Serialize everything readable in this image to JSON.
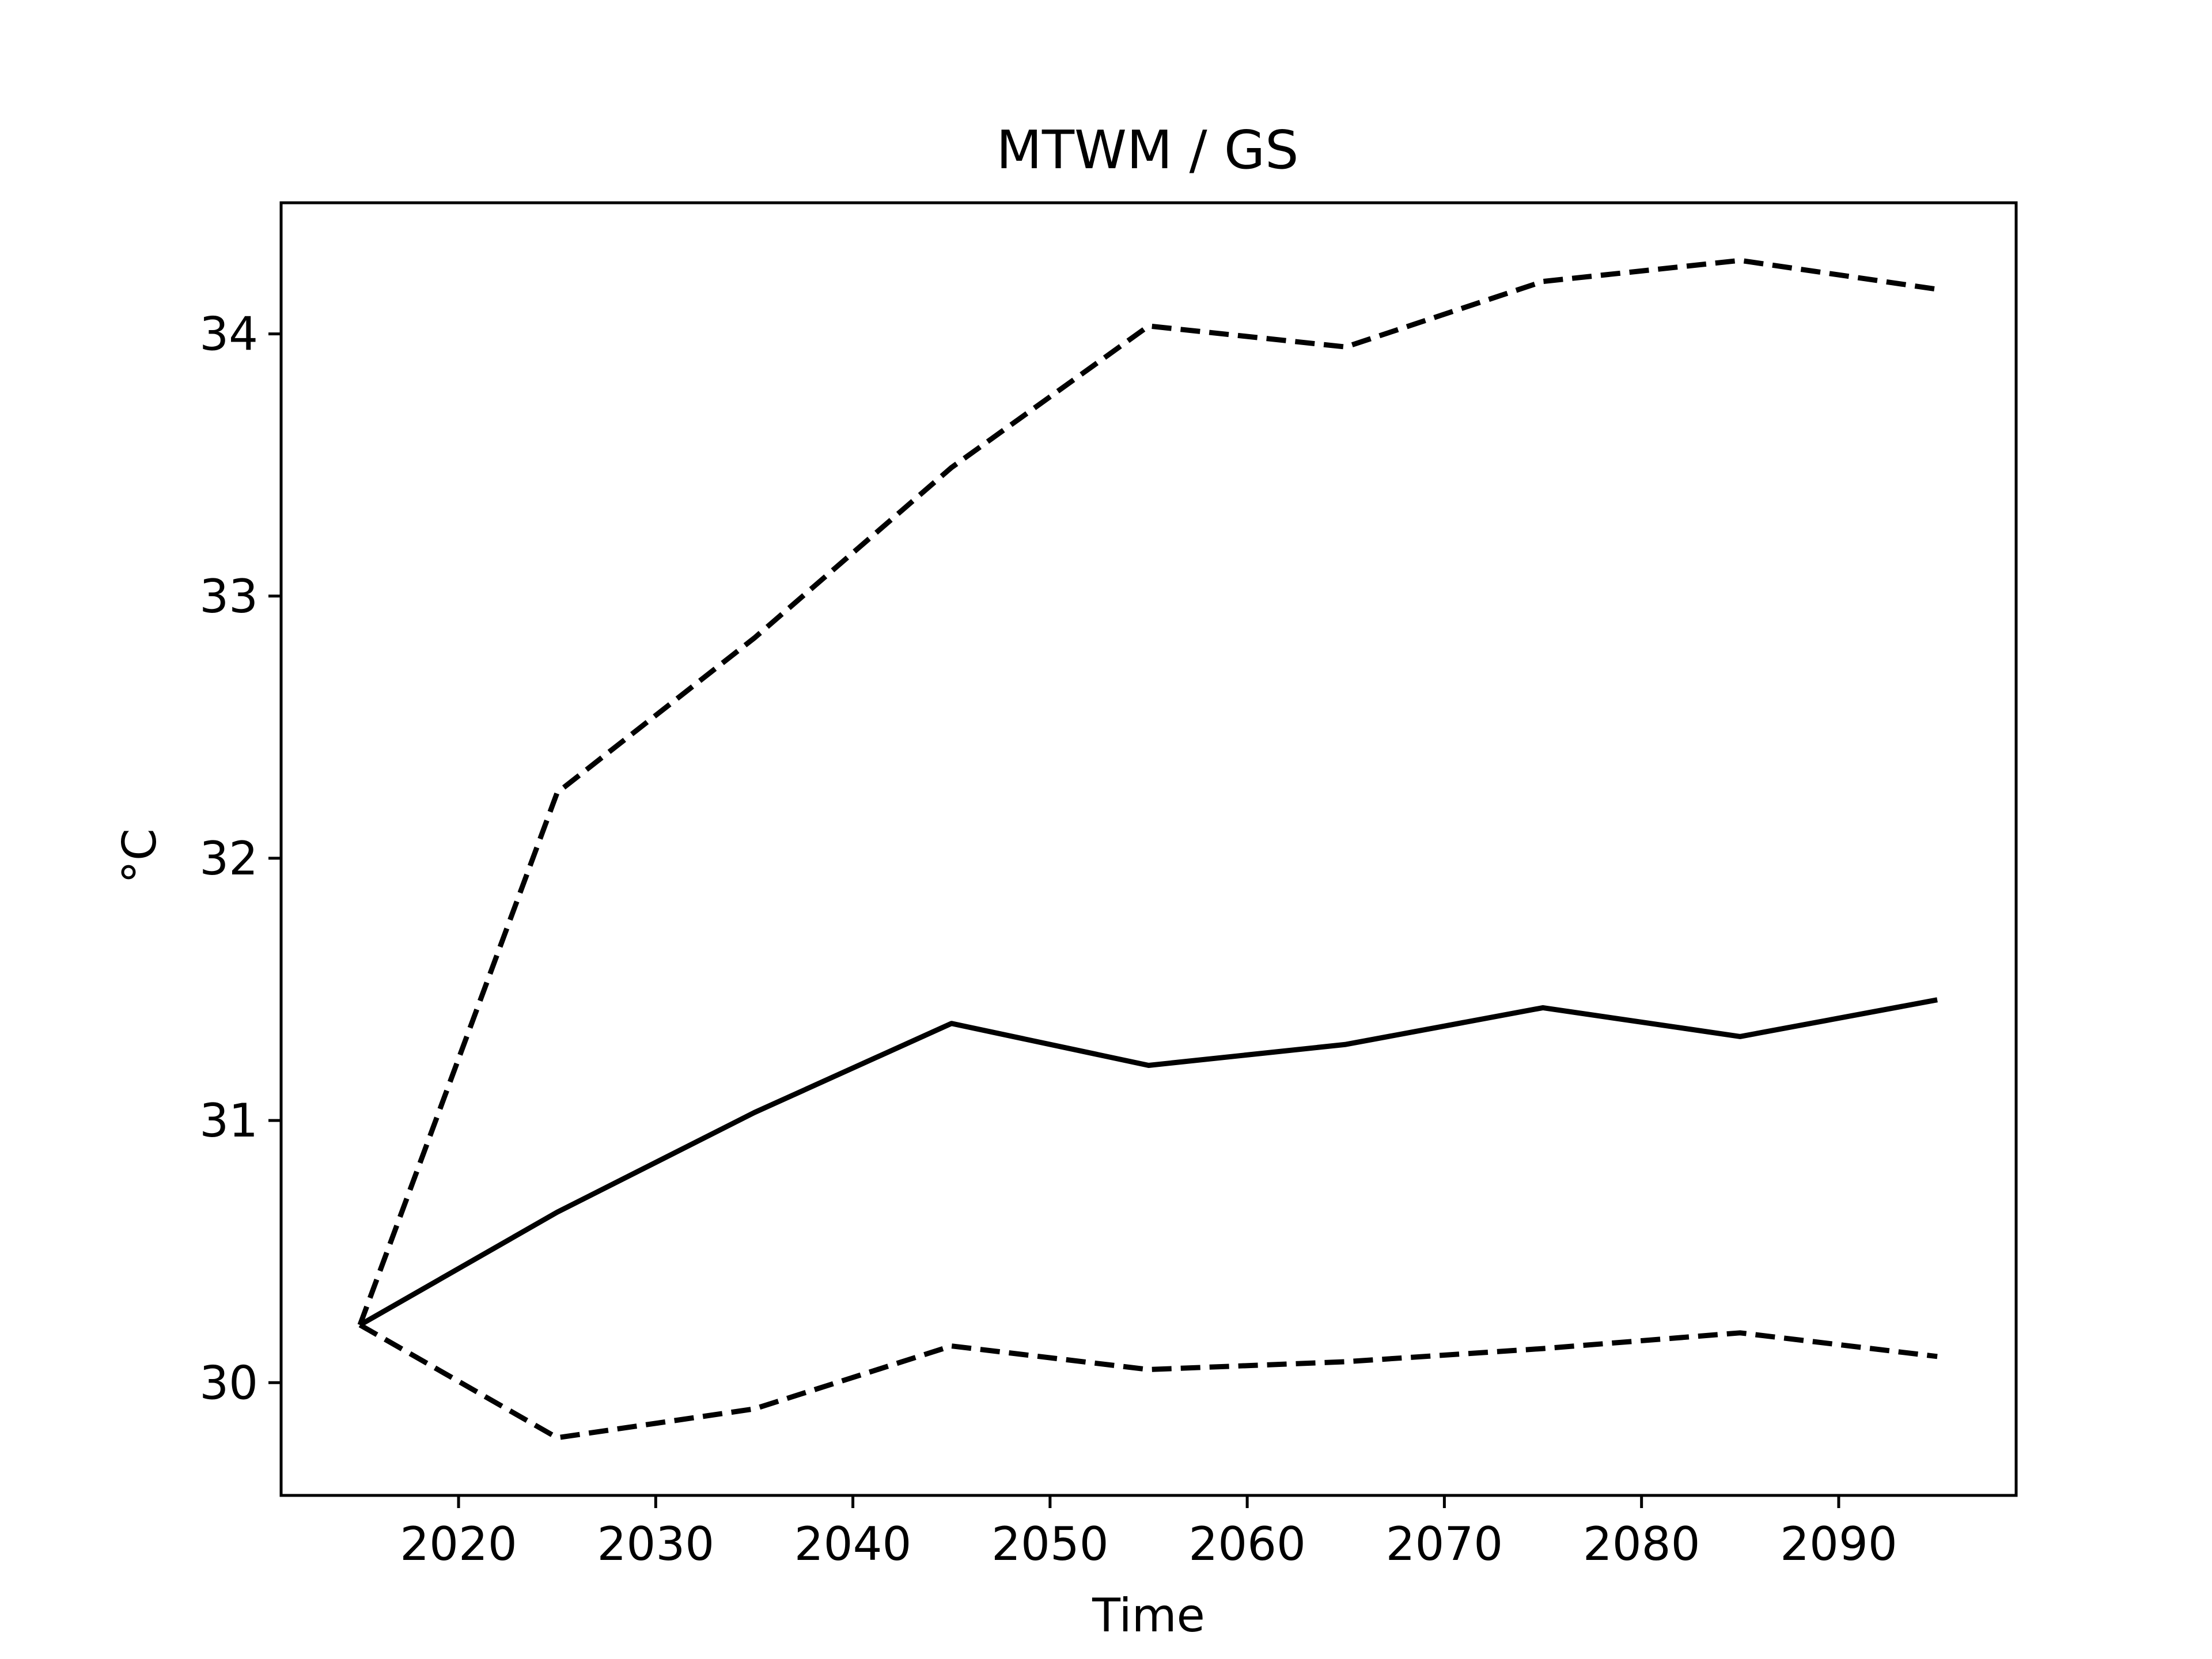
{
  "chart_data": {
    "type": "line",
    "title": "MTWM / GS",
    "xlabel": "Time",
    "ylabel": "°C",
    "xlim": [
      2011,
      2099
    ],
    "ylim": [
      29.57,
      34.5
    ],
    "xticks": [
      2020,
      2030,
      2040,
      2050,
      2060,
      2070,
      2080,
      2090
    ],
    "yticks": [
      30,
      31,
      32,
      33,
      34
    ],
    "grid": false,
    "legend": "none",
    "x": [
      2015,
      2025,
      2035,
      2045,
      2055,
      2065,
      2075,
      2085,
      2095
    ],
    "series": [
      {
        "style": "solid",
        "color": "#000000",
        "values": [
          30.22,
          30.65,
          31.03,
          31.37,
          31.21,
          31.29,
          31.43,
          31.32,
          31.46
        ]
      },
      {
        "style": "dashed",
        "color": "#000000",
        "values": [
          30.22,
          32.25,
          32.84,
          33.49,
          34.03,
          33.95,
          34.2,
          34.28,
          34.17
        ]
      },
      {
        "style": "dashed",
        "color": "#000000",
        "values": [
          30.22,
          29.79,
          29.9,
          30.14,
          30.05,
          30.08,
          30.13,
          30.19,
          30.1
        ]
      }
    ]
  }
}
